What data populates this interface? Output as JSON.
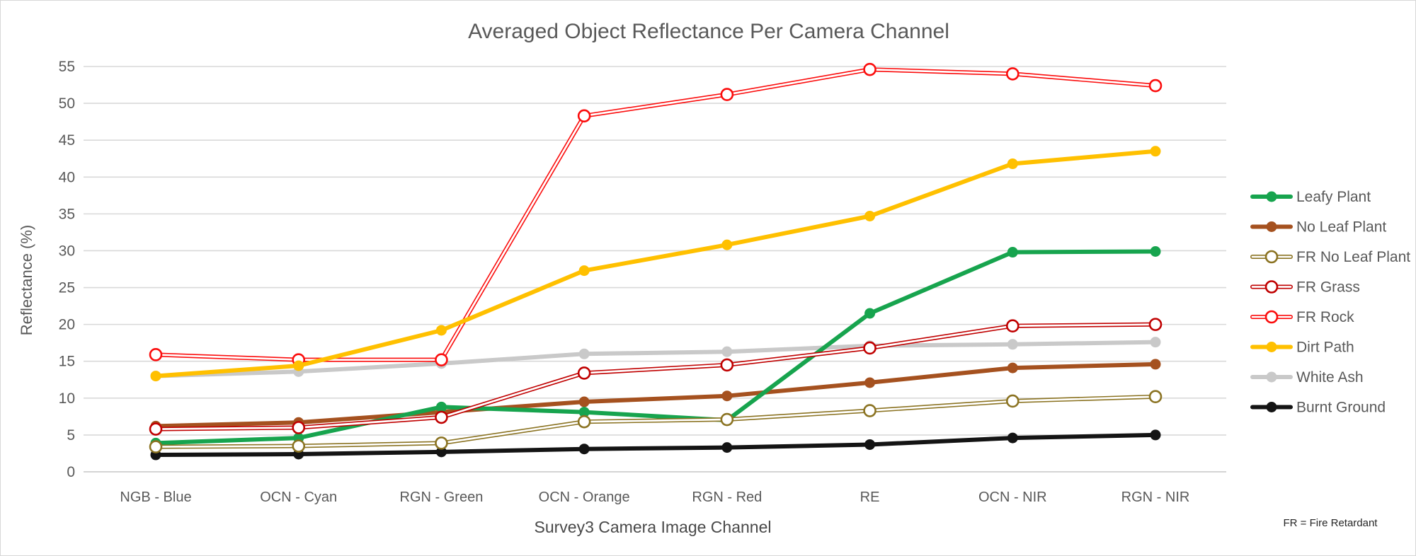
{
  "page": {
    "background": "#FFFFFF",
    "border_color": "#D7D7D7"
  },
  "chart_data": {
    "type": "line",
    "title": "Averaged Object Reflectance Per Camera Channel",
    "xlabel": "Survey3 Camera Image Channel",
    "ylabel": "Reflectance (%)",
    "note": "FR = Fire Retardant",
    "ylim": [
      0,
      55
    ],
    "ytick_step": 5,
    "grid": true,
    "legend_position": "right",
    "gridline_color": "#D9D9D9",
    "baseline_color": "#C6C6C6",
    "categories": [
      "NGB - Blue",
      "OCN - Cyan",
      "RGN - Green",
      "OCN - Orange",
      "RGN - Red",
      "RE",
      "OCN - NIR",
      "RGN - NIR"
    ],
    "series": [
      {
        "name": "Leafy Plant",
        "color": "#17A44E",
        "marker": "filled",
        "line_style": "solid",
        "z": 4,
        "values": [
          3.9,
          4.6,
          8.8,
          8.1,
          7.0,
          21.5,
          29.8,
          29.9
        ]
      },
      {
        "name": "No Leaf Plant",
        "color": "#A5511F",
        "marker": "filled",
        "line_style": "solid",
        "z": 3,
        "values": [
          6.2,
          6.7,
          8.1,
          9.5,
          10.3,
          12.1,
          14.1,
          14.6
        ]
      },
      {
        "name": "FR No Leaf Plant",
        "color": "#8B7322",
        "marker": "open",
        "line_style": "outlined",
        "z": 5,
        "values": [
          3.4,
          3.5,
          3.9,
          6.8,
          7.1,
          8.3,
          9.6,
          10.2
        ]
      },
      {
        "name": "FR Grass",
        "color": "#C00000",
        "marker": "open",
        "line_style": "outlined",
        "z": 6,
        "values": [
          5.8,
          6.0,
          7.4,
          13.4,
          14.5,
          16.8,
          19.8,
          20.0
        ]
      },
      {
        "name": "FR Rock",
        "color": "#FB0D0D",
        "marker": "open",
        "line_style": "outlined",
        "z": 7,
        "values": [
          15.9,
          15.2,
          15.2,
          48.3,
          51.2,
          54.6,
          54.0,
          52.4
        ]
      },
      {
        "name": "Dirt Path",
        "color": "#FFC000",
        "marker": "filled",
        "line_style": "solid",
        "z": 8,
        "values": [
          13.0,
          14.4,
          19.2,
          27.3,
          30.8,
          34.7,
          41.8,
          43.5
        ]
      },
      {
        "name": "White Ash",
        "color": "#C9C9C9",
        "marker": "filled",
        "line_style": "solid",
        "z": 1,
        "values": [
          13.0,
          13.6,
          14.7,
          16.0,
          16.3,
          17.1,
          17.3,
          17.6
        ]
      },
      {
        "name": "Burnt Ground",
        "color": "#141414",
        "marker": "filled",
        "line_style": "solid",
        "z": 2,
        "values": [
          2.3,
          2.4,
          2.7,
          3.1,
          3.3,
          3.7,
          4.6,
          5.0
        ]
      }
    ]
  }
}
